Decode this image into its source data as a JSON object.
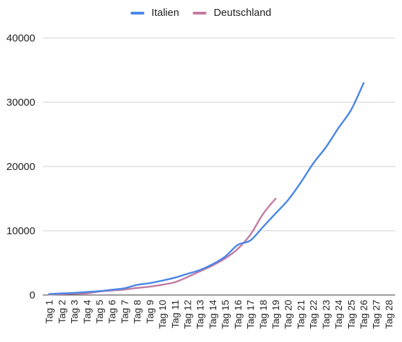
{
  "chart_data": {
    "type": "line",
    "categories": [
      "Tag 1",
      "Tag 2",
      "Tag 3",
      "Tag 4",
      "Tag 5",
      "Tag 6",
      "Tag 7",
      "Tag 8",
      "Tag 9",
      "Tag 10",
      "Tag 11",
      "Tag 12",
      "Tag 13",
      "Tag 14",
      "Tag 15",
      "Tag 16",
      "Tag 17",
      "Tag 18",
      "Tag 19",
      "Tag 20",
      "Tag 21",
      "Tag 22",
      "Tag 23",
      "Tag 24",
      "Tag 25",
      "Tag 26",
      "Tag 27",
      "Tag 28"
    ],
    "series": [
      {
        "name": "Italien",
        "color": "#4a86e8",
        "values": [
          150,
          250,
          330,
          470,
          600,
          820,
          1050,
          1580,
          1850,
          2250,
          2700,
          3300,
          3900,
          4800,
          6000,
          7800,
          8500,
          10600,
          12700,
          14800,
          17500,
          20500,
          23000,
          26000,
          28800,
          33000,
          null,
          null
        ]
      },
      {
        "name": "Deutschland",
        "color": "#c27ba0",
        "values": [
          80,
          150,
          200,
          260,
          550,
          700,
          850,
          1100,
          1300,
          1600,
          2000,
          2800,
          3700,
          4600,
          5700,
          7200,
          9400,
          12600,
          15000,
          null,
          null,
          null,
          null,
          null,
          null,
          null,
          null,
          null
        ]
      }
    ],
    "yticks": [
      0,
      10000,
      20000,
      30000,
      40000
    ],
    "ylim": [
      0,
      40000
    ],
    "grid": true,
    "legend_position": "top-center",
    "xlabel": "",
    "ylabel": ""
  }
}
